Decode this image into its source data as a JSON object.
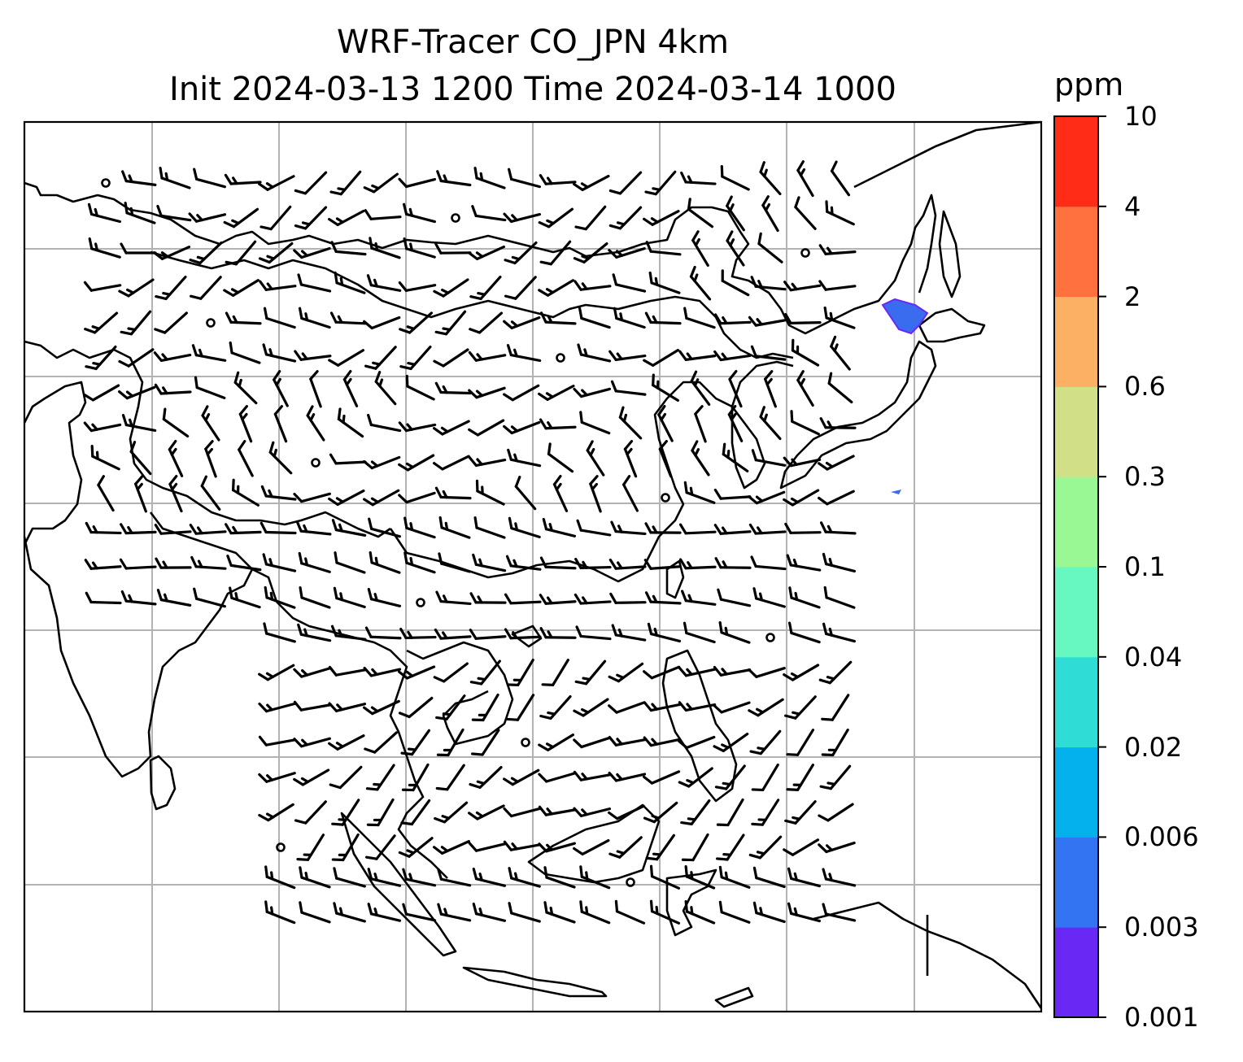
{
  "title": {
    "line1": "WRF-Tracer CO_JPN 4km",
    "line2": "Init 2024-03-13 1200 Time 2024-03-14 1000"
  },
  "colorbar": {
    "unit": "ppm",
    "levels": [
      "0.001",
      "0.003",
      "0.006",
      "0.02",
      "0.04",
      "0.1",
      "0.3",
      "0.6",
      "2",
      "4",
      "10"
    ],
    "colors": [
      "#6a28f5",
      "#3374f2",
      "#05b1ec",
      "#30ddd6",
      "#67f7c0",
      "#99f894",
      "#d1e086",
      "#fbb063",
      "#ff7240",
      "#ff2d18"
    ]
  },
  "map": {
    "gridlines": true,
    "tracer_plume_color": "#3a6cf0",
    "wind_barbs": "black"
  }
}
